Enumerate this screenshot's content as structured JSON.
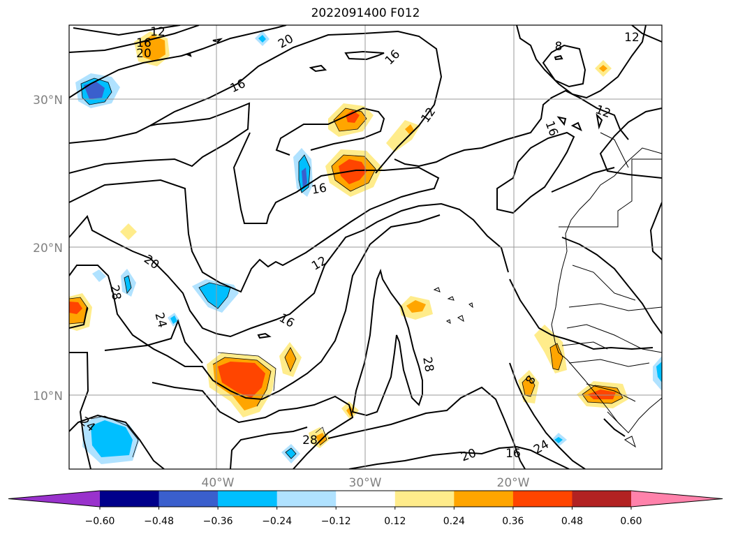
{
  "title": "2022091400 F012",
  "map": {
    "lat_labels": [
      "30°N",
      "20°N",
      "10°N"
    ],
    "lon_labels": [
      "40°W",
      "30°W",
      "20°W"
    ],
    "contour_labels": [
      "12",
      "16",
      "20",
      "20",
      "16",
      "16",
      "12",
      "8",
      "16",
      "12",
      "12",
      "16",
      "20",
      "28",
      "24",
      "12",
      "16",
      "28",
      "8",
      "24",
      "20",
      "16",
      "28",
      "24"
    ]
  },
  "colorbar": {
    "ticks": [
      "−0.60",
      "−0.48",
      "−0.36",
      "−0.24",
      "−0.12",
      "0.12",
      "0.24",
      "0.36",
      "0.48",
      "0.60"
    ],
    "colors": [
      "#9932cc",
      "#00008b",
      "#3a5fcd",
      "#00bfff",
      "#b0e2ff",
      "#ffffff",
      "#ffec8b",
      "#ffa500",
      "#ff4500",
      "#b22222",
      "#ff82ab"
    ]
  }
}
